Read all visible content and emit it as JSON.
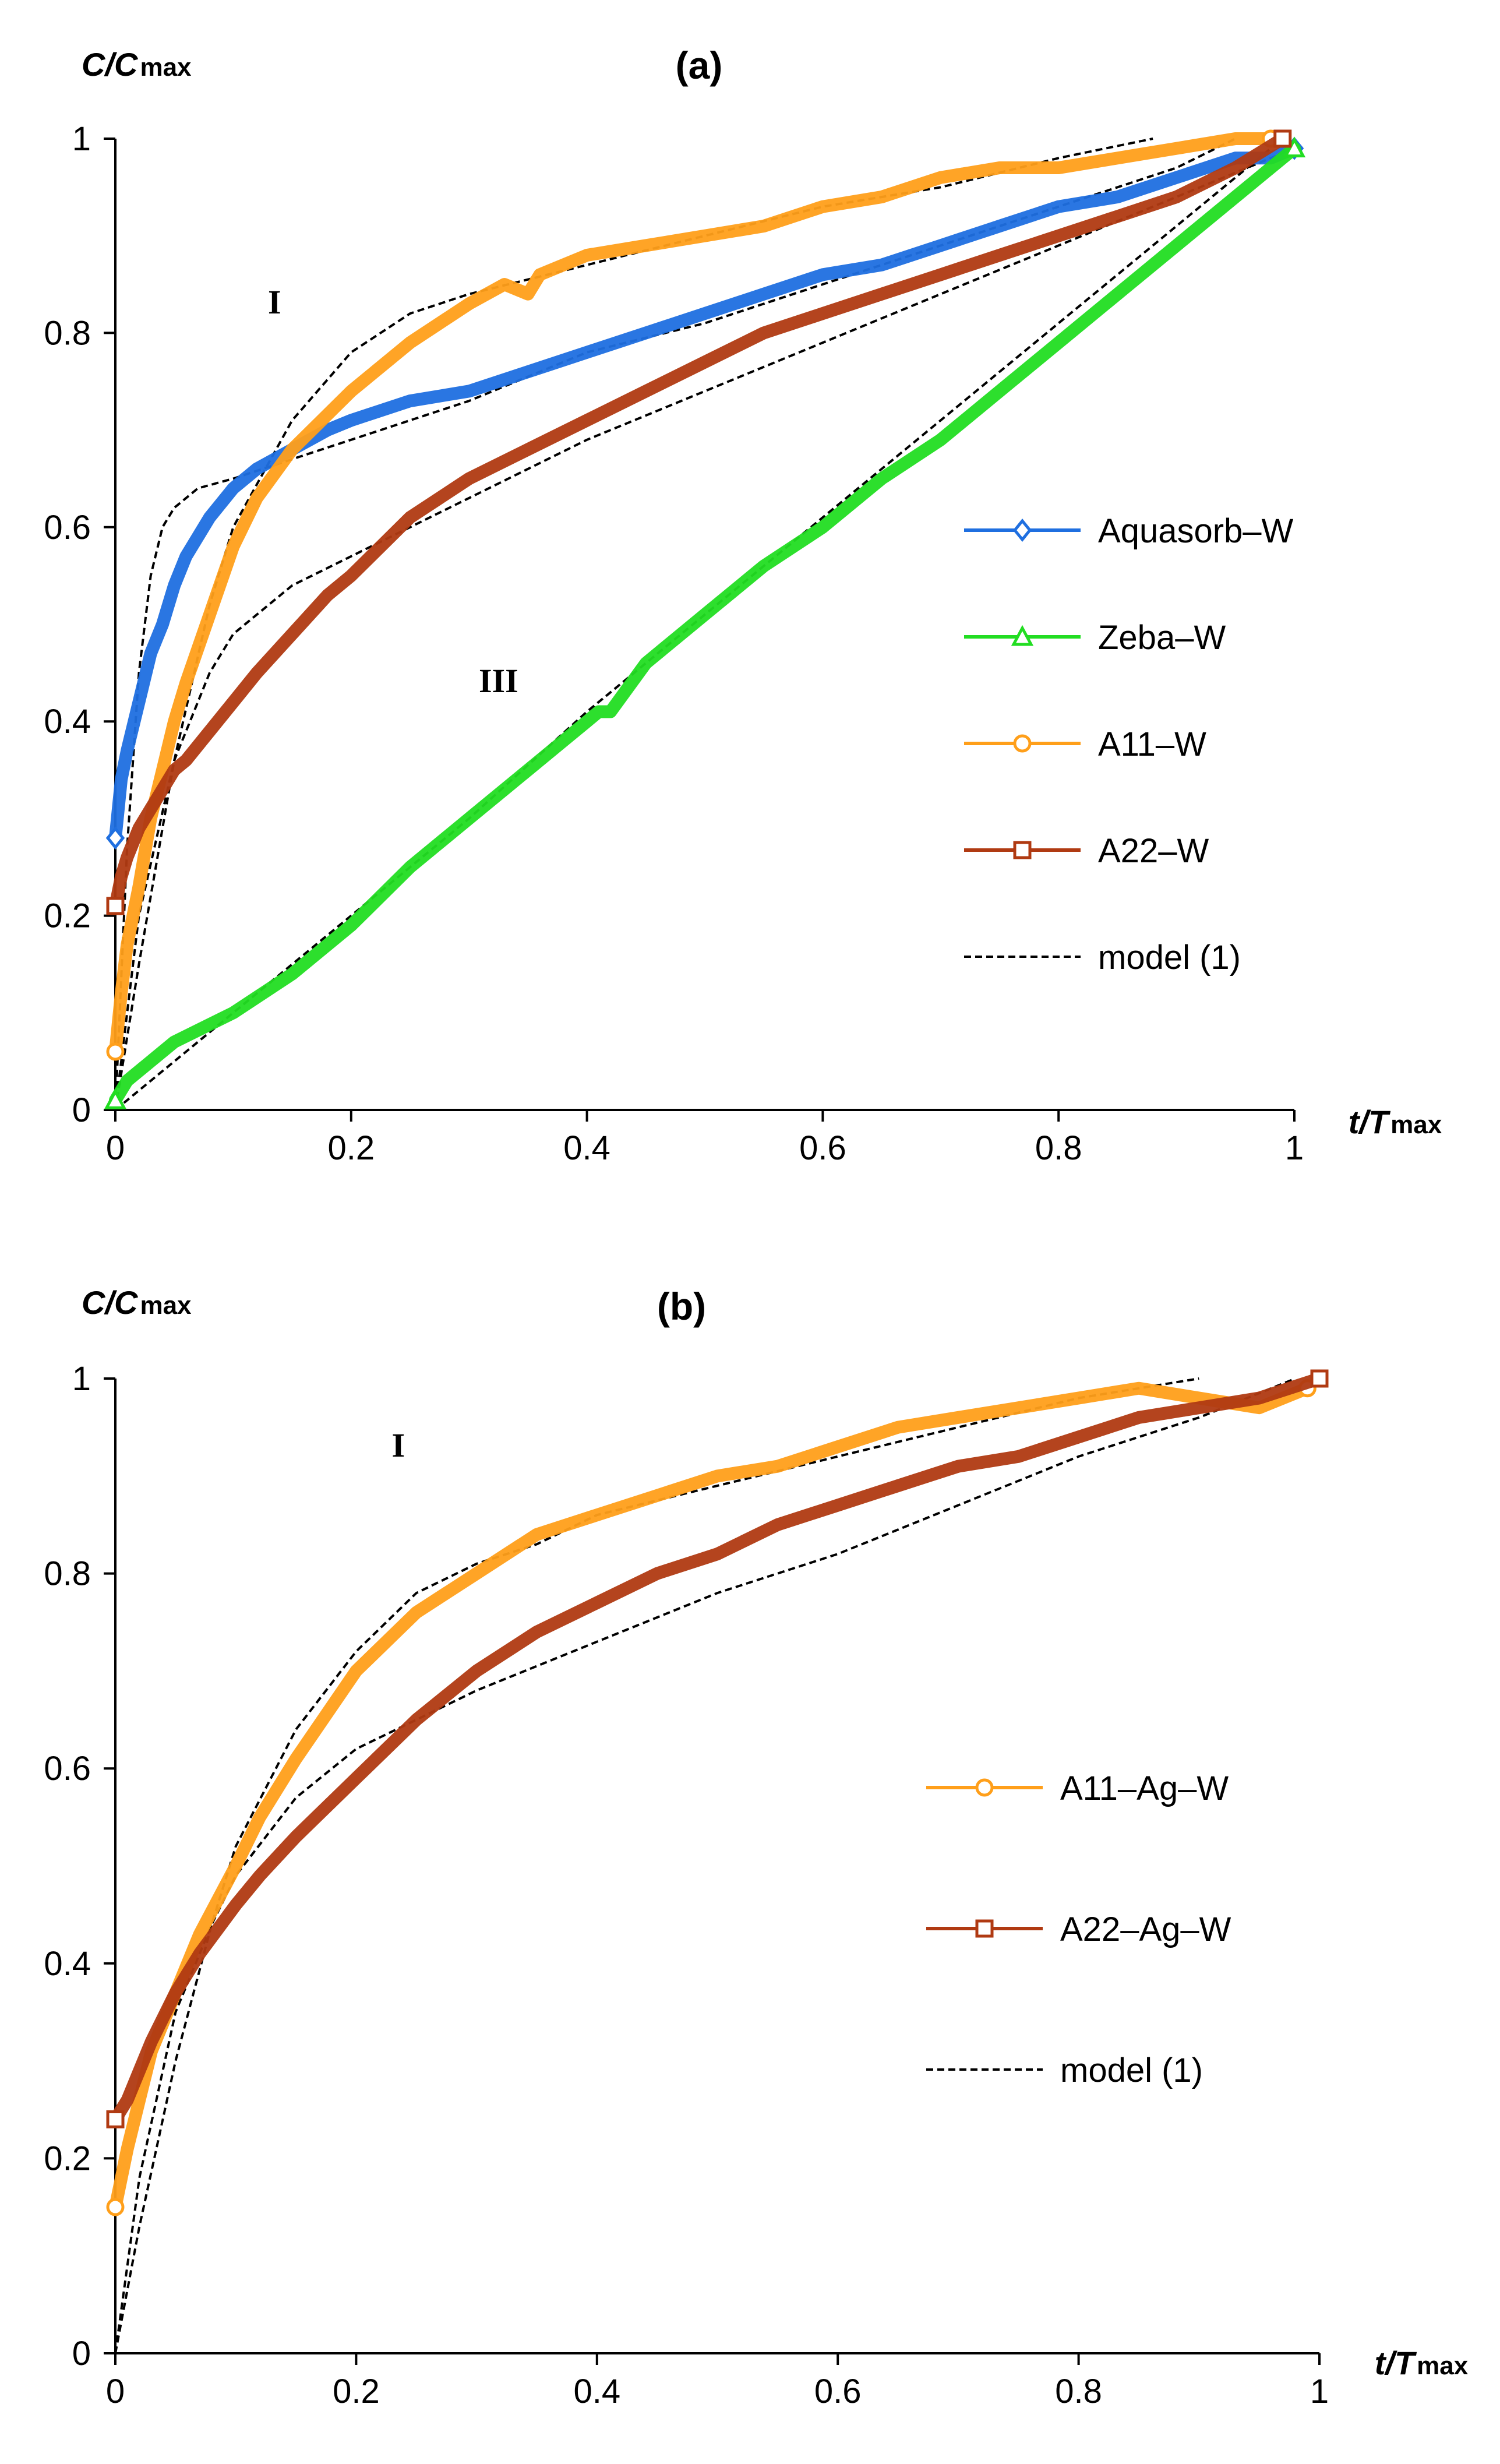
{
  "chart_data": [
    {
      "type": "line",
      "panel_label": "(a)",
      "ylabel": "C/C",
      "ylabel_sub": "max",
      "xlabel": "t/T",
      "xlabel_sub": "max",
      "xlim": [
        0,
        1
      ],
      "ylim": [
        0,
        1
      ],
      "xticks": [
        0,
        0.2,
        0.4,
        0.6,
        0.8,
        1
      ],
      "yticks": [
        0,
        0.2,
        0.4,
        0.6,
        0.8,
        1
      ],
      "xtick_labels": [
        "0",
        "0.2",
        "0.4",
        "0.6",
        "0.8",
        "1"
      ],
      "ytick_labels": [
        "0",
        "0.2",
        "0.4",
        "0.6",
        "0.8",
        "1"
      ],
      "grid": false,
      "legend_position": "right",
      "annotations": [
        {
          "text": "I",
          "x": 0.135,
          "y": 0.82
        },
        {
          "text": "III",
          "x": 0.325,
          "y": 0.43
        }
      ],
      "series": [
        {
          "name": "Aquasorb–W",
          "color": "#1f6fe0",
          "marker": "diamond",
          "kind": "data",
          "x": [
            0,
            0.005,
            0.01,
            0.02,
            0.03,
            0.04,
            0.05,
            0.06,
            0.08,
            0.1,
            0.12,
            0.15,
            0.18,
            0.2,
            0.25,
            0.3,
            0.35,
            0.4,
            0.45,
            0.5,
            0.55,
            0.6,
            0.65,
            0.7,
            0.75,
            0.8,
            0.85,
            0.9,
            0.95,
            0.98,
            1.0
          ],
          "y": [
            0.28,
            0.34,
            0.37,
            0.42,
            0.47,
            0.5,
            0.54,
            0.57,
            0.61,
            0.64,
            0.66,
            0.68,
            0.7,
            0.71,
            0.73,
            0.74,
            0.76,
            0.78,
            0.8,
            0.82,
            0.84,
            0.86,
            0.87,
            0.89,
            0.91,
            0.93,
            0.94,
            0.96,
            0.98,
            0.98,
            0.99
          ]
        },
        {
          "name": "Zeba–W",
          "color": "#22dd22",
          "marker": "triangle",
          "kind": "data",
          "x": [
            0,
            0.01,
            0.02,
            0.05,
            0.1,
            0.15,
            0.2,
            0.25,
            0.3,
            0.35,
            0.4,
            0.41,
            0.42,
            0.45,
            0.5,
            0.55,
            0.6,
            0.65,
            0.7,
            0.75,
            0.8,
            0.85,
            0.9,
            0.95,
            1.0
          ],
          "y": [
            0.01,
            0.03,
            0.04,
            0.07,
            0.1,
            0.14,
            0.19,
            0.25,
            0.3,
            0.35,
            0.4,
            0.41,
            0.41,
            0.46,
            0.51,
            0.56,
            0.6,
            0.65,
            0.69,
            0.74,
            0.79,
            0.84,
            0.89,
            0.94,
            0.99
          ]
        },
        {
          "name": "A11–W",
          "color": "#ff9f1a",
          "marker": "circle",
          "kind": "data",
          "x": [
            0,
            0.005,
            0.01,
            0.02,
            0.03,
            0.04,
            0.05,
            0.06,
            0.08,
            0.1,
            0.12,
            0.15,
            0.2,
            0.25,
            0.3,
            0.33,
            0.35,
            0.36,
            0.4,
            0.45,
            0.5,
            0.55,
            0.6,
            0.65,
            0.7,
            0.75,
            0.8,
            0.85,
            0.9,
            0.95,
            0.98
          ],
          "y": [
            0.06,
            0.12,
            0.17,
            0.23,
            0.3,
            0.35,
            0.4,
            0.44,
            0.51,
            0.58,
            0.63,
            0.68,
            0.74,
            0.79,
            0.83,
            0.85,
            0.84,
            0.86,
            0.88,
            0.89,
            0.9,
            0.91,
            0.93,
            0.94,
            0.96,
            0.97,
            0.97,
            0.98,
            0.99,
            1.0,
            1.0
          ]
        },
        {
          "name": "A22–W",
          "color": "#b03a12",
          "marker": "square",
          "kind": "data",
          "x": [
            0,
            0.005,
            0.01,
            0.02,
            0.03,
            0.04,
            0.05,
            0.06,
            0.08,
            0.1,
            0.12,
            0.15,
            0.18,
            0.2,
            0.25,
            0.3,
            0.35,
            0.4,
            0.45,
            0.5,
            0.55,
            0.6,
            0.65,
            0.7,
            0.75,
            0.8,
            0.85,
            0.9,
            0.95,
            0.99
          ],
          "y": [
            0.21,
            0.24,
            0.26,
            0.29,
            0.31,
            0.33,
            0.35,
            0.36,
            0.39,
            0.42,
            0.45,
            0.49,
            0.53,
            0.55,
            0.61,
            0.65,
            0.68,
            0.71,
            0.74,
            0.77,
            0.8,
            0.82,
            0.84,
            0.86,
            0.88,
            0.9,
            0.92,
            0.94,
            0.97,
            1.0
          ]
        },
        {
          "name": "model (1)",
          "color": "#000000",
          "kind": "model",
          "for": "Aquasorb–W",
          "x": [
            0,
            0.01,
            0.02,
            0.03,
            0.04,
            0.05,
            0.07,
            0.1,
            0.15,
            0.2,
            0.3,
            0.4,
            0.5,
            0.6,
            0.7,
            0.8,
            0.9,
            0.95
          ],
          "y": [
            0,
            0.27,
            0.45,
            0.55,
            0.6,
            0.62,
            0.64,
            0.65,
            0.67,
            0.69,
            0.73,
            0.78,
            0.81,
            0.85,
            0.89,
            0.93,
            0.97,
            1.0
          ]
        },
        {
          "name": "model (1)",
          "color": "#000000",
          "kind": "model",
          "for": "Zeba–W",
          "x": [
            0,
            0.1,
            0.2,
            0.3,
            0.4,
            0.5,
            0.6,
            0.7,
            0.8,
            0.9,
            0.98
          ],
          "y": [
            0,
            0.1,
            0.2,
            0.3,
            0.41,
            0.51,
            0.61,
            0.71,
            0.81,
            0.91,
            0.99
          ]
        },
        {
          "name": "model (1)",
          "color": "#000000",
          "kind": "model",
          "for": "A11–W",
          "x": [
            0,
            0.02,
            0.05,
            0.08,
            0.1,
            0.15,
            0.2,
            0.25,
            0.3,
            0.4,
            0.5,
            0.6,
            0.7,
            0.8,
            0.88
          ],
          "y": [
            0,
            0.15,
            0.36,
            0.52,
            0.6,
            0.71,
            0.78,
            0.82,
            0.84,
            0.87,
            0.9,
            0.93,
            0.95,
            0.98,
            1.0
          ]
        },
        {
          "name": "model (1)",
          "color": "#000000",
          "kind": "model",
          "for": "A22–W",
          "x": [
            0,
            0.02,
            0.05,
            0.08,
            0.1,
            0.15,
            0.2,
            0.25,
            0.3,
            0.4,
            0.5,
            0.6,
            0.7,
            0.8,
            0.9,
            1.0
          ],
          "y": [
            0,
            0.2,
            0.36,
            0.45,
            0.49,
            0.54,
            0.57,
            0.6,
            0.63,
            0.69,
            0.74,
            0.79,
            0.84,
            0.89,
            0.94,
            0.99
          ]
        }
      ]
    },
    {
      "type": "line",
      "panel_label": "(b)",
      "ylabel": "C/C",
      "ylabel_sub": "max",
      "xlabel": "t/T",
      "xlabel_sub": "max",
      "xlim": [
        0,
        1
      ],
      "ylim": [
        0,
        1
      ],
      "xticks": [
        0,
        0.2,
        0.4,
        0.6,
        0.8,
        1
      ],
      "yticks": [
        0,
        0.2,
        0.4,
        0.6,
        0.8,
        1
      ],
      "xtick_labels": [
        "0",
        "0.2",
        "0.4",
        "0.6",
        "0.8",
        "1"
      ],
      "ytick_labels": [
        "0",
        "0.2",
        "0.4",
        "0.6",
        "0.8",
        "1"
      ],
      "grid": false,
      "legend_position": "right",
      "annotations": [
        {
          "text": "I",
          "x": 0.235,
          "y": 0.92
        }
      ],
      "series": [
        {
          "name": "A11–Ag–W",
          "color": "#ff9f1a",
          "marker": "circle",
          "kind": "data",
          "x": [
            0,
            0.005,
            0.01,
            0.02,
            0.03,
            0.05,
            0.07,
            0.1,
            0.12,
            0.15,
            0.2,
            0.25,
            0.3,
            0.35,
            0.4,
            0.45,
            0.5,
            0.55,
            0.6,
            0.65,
            0.7,
            0.75,
            0.8,
            0.85,
            0.9,
            0.95,
            0.99
          ],
          "y": [
            0.15,
            0.18,
            0.21,
            0.26,
            0.31,
            0.37,
            0.43,
            0.5,
            0.55,
            0.61,
            0.7,
            0.76,
            0.8,
            0.84,
            0.86,
            0.88,
            0.9,
            0.91,
            0.93,
            0.95,
            0.96,
            0.97,
            0.98,
            0.99,
            0.98,
            0.97,
            0.99
          ]
        },
        {
          "name": "A22–Ag–W",
          "color": "#b03a12",
          "marker": "square",
          "kind": "data",
          "x": [
            0,
            0.005,
            0.01,
            0.02,
            0.03,
            0.05,
            0.07,
            0.1,
            0.12,
            0.15,
            0.2,
            0.25,
            0.3,
            0.35,
            0.4,
            0.45,
            0.5,
            0.55,
            0.6,
            0.65,
            0.7,
            0.75,
            0.8,
            0.85,
            0.9,
            0.95,
            1.0
          ],
          "y": [
            0.24,
            0.25,
            0.26,
            0.29,
            0.32,
            0.37,
            0.41,
            0.46,
            0.49,
            0.53,
            0.59,
            0.65,
            0.7,
            0.74,
            0.77,
            0.8,
            0.82,
            0.85,
            0.87,
            0.89,
            0.91,
            0.92,
            0.94,
            0.96,
            0.97,
            0.98,
            1.0
          ]
        },
        {
          "name": "model (1)",
          "color": "#000000",
          "kind": "model",
          "for": "A11–Ag–W",
          "x": [
            0,
            0.02,
            0.05,
            0.08,
            0.1,
            0.15,
            0.2,
            0.25,
            0.3,
            0.35,
            0.4,
            0.5,
            0.6,
            0.7,
            0.8,
            0.9
          ],
          "y": [
            0,
            0.13,
            0.3,
            0.44,
            0.52,
            0.64,
            0.72,
            0.78,
            0.81,
            0.83,
            0.86,
            0.89,
            0.92,
            0.95,
            0.98,
            1.0
          ]
        },
        {
          "name": "model (1)",
          "color": "#000000",
          "kind": "model",
          "for": "A22–Ag–W",
          "x": [
            0,
            0.02,
            0.05,
            0.08,
            0.1,
            0.15,
            0.2,
            0.25,
            0.3,
            0.4,
            0.5,
            0.6,
            0.7,
            0.8,
            0.9,
            0.98
          ],
          "y": [
            0,
            0.18,
            0.35,
            0.44,
            0.49,
            0.57,
            0.62,
            0.65,
            0.68,
            0.73,
            0.78,
            0.82,
            0.87,
            0.92,
            0.96,
            1.0
          ]
        }
      ]
    }
  ]
}
